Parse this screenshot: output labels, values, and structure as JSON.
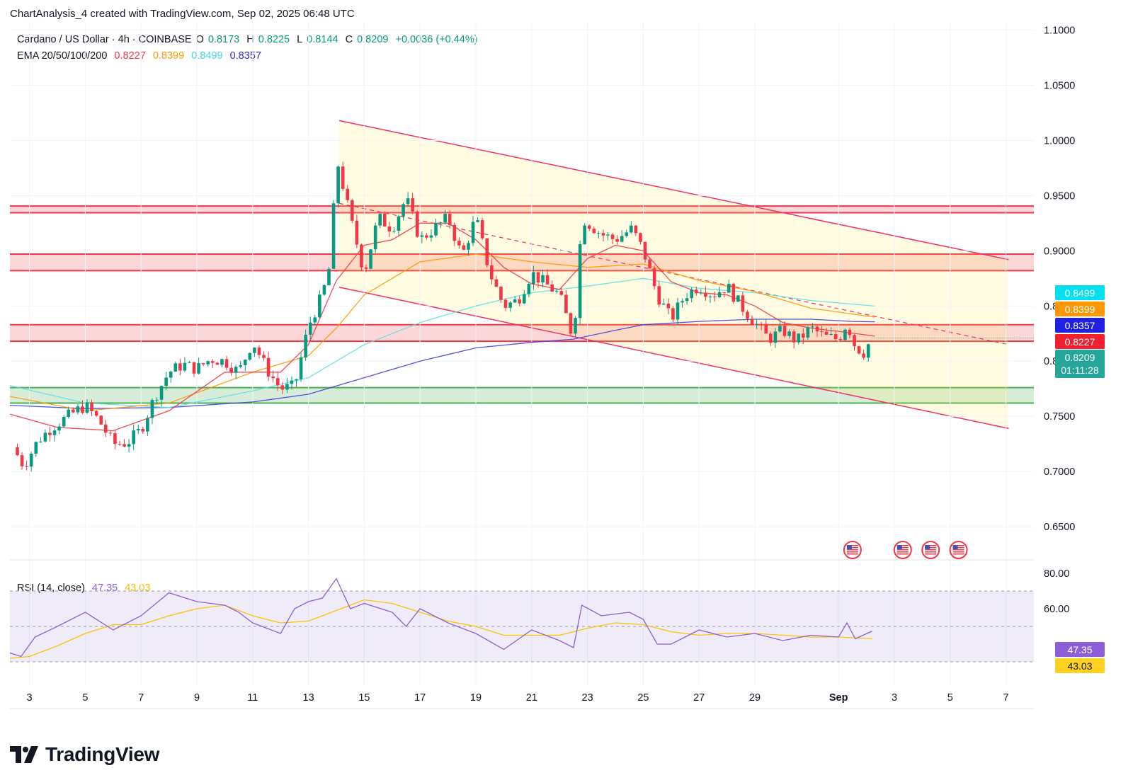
{
  "header": {
    "author_line": "ChartAnalysis_4 created with TradingView.com, Sep 02, 2025 06:48 UTC"
  },
  "legend": {
    "symbol": "Cardano / US Dollar · 4h · COINBASE",
    "open_label": "O",
    "open": "0.8173",
    "high_label": "H",
    "high": "0.8225",
    "low_label": "L",
    "low": "0.8144",
    "close_label": "C",
    "close": "0.8209",
    "change": "+0.0036 (+0.44%)",
    "ema_label": "EMA 20/50/100/200",
    "ema20": "0.8227",
    "ema50": "0.8399",
    "ema100": "0.8499",
    "ema200": "0.8357",
    "rsi_label": "RSI (14, close)",
    "rsi": "47.35",
    "rsi_ma": "43.03"
  },
  "price_badges": {
    "ema100": "0.8499",
    "ema50": "0.8399",
    "ema200": "0.8357",
    "ema20": "0.8227",
    "close": "0.8209",
    "countdown": "01:11:28",
    "rsi": "47.35",
    "rsi_ma": "43.03"
  },
  "colors": {
    "up": "#089981",
    "down": "#f23645",
    "ema20": "#f23645",
    "ema50": "#ff9800",
    "ema100": "#5ee0e8",
    "ema200": "#3f3fe0",
    "rsi": "#8e5ed8",
    "rsi_ma": "#f7c600",
    "channel": "#f0306a",
    "resistance": "#f23645",
    "support": "#4caf50"
  },
  "brand": {
    "name": "TradingView",
    "logo_icon": "tradingview-logo-icon"
  },
  "chart_data": {
    "type": "candlestick",
    "title": "Cardano / US Dollar · 4h · COINBASE",
    "x_ticks": [
      "3",
      "5",
      "7",
      "9",
      "11",
      "13",
      "15",
      "17",
      "19",
      "21",
      "23",
      "25",
      "27",
      "29",
      "Sep",
      "3",
      "5",
      "7"
    ],
    "x_tick_days": [
      3,
      5,
      7,
      9,
      11,
      13,
      15,
      17,
      19,
      21,
      23,
      25,
      27,
      29,
      32,
      34,
      36,
      38
    ],
    "y_ticks": [
      "1.1000",
      "1.0500",
      "1.0000",
      "0.9500",
      "0.9000",
      "0.8500",
      "0.8000",
      "0.7500",
      "0.7000",
      "0.6500"
    ],
    "ylim": [
      0.627,
      1.108
    ],
    "rsi_ticks": [
      "80.00",
      "60.00"
    ],
    "rsi_ylim": [
      16,
      84
    ],
    "rsi_bands": [
      70,
      50,
      30
    ],
    "x_start": "2025-08-02",
    "x_range_days": [
      2.3,
      39.0
    ],
    "close_keypoints": [
      [
        2.4,
        0.722
      ],
      [
        2.8,
        0.705
      ],
      [
        3.3,
        0.728
      ],
      [
        3.8,
        0.74
      ],
      [
        4.5,
        0.752
      ],
      [
        5.0,
        0.76
      ],
      [
        5.5,
        0.746
      ],
      [
        6.0,
        0.725
      ],
      [
        6.5,
        0.726
      ],
      [
        7.0,
        0.738
      ],
      [
        7.5,
        0.768
      ],
      [
        8.0,
        0.79
      ],
      [
        8.5,
        0.797
      ],
      [
        9.0,
        0.793
      ],
      [
        9.5,
        0.802
      ],
      [
        10.0,
        0.8
      ],
      [
        10.5,
        0.79
      ],
      [
        11.0,
        0.818
      ],
      [
        11.5,
        0.793
      ],
      [
        12.0,
        0.775
      ],
      [
        12.5,
        0.777
      ],
      [
        13.0,
        0.832
      ],
      [
        13.5,
        0.86
      ],
      [
        13.8,
        0.89
      ],
      [
        14.0,
        0.985
      ],
      [
        14.5,
        0.93
      ],
      [
        15.0,
        0.88
      ],
      [
        15.5,
        0.93
      ],
      [
        16.0,
        0.92
      ],
      [
        16.5,
        0.948
      ],
      [
        17.0,
        0.91
      ],
      [
        17.5,
        0.92
      ],
      [
        18.0,
        0.93
      ],
      [
        18.5,
        0.895
      ],
      [
        19.0,
        0.93
      ],
      [
        19.5,
        0.88
      ],
      [
        20.0,
        0.85
      ],
      [
        20.5,
        0.855
      ],
      [
        21.0,
        0.88
      ],
      [
        21.5,
        0.87
      ],
      [
        22.0,
        0.86
      ],
      [
        22.5,
        0.82
      ],
      [
        22.8,
        0.93
      ],
      [
        23.5,
        0.915
      ],
      [
        24.0,
        0.91
      ],
      [
        24.6,
        0.92
      ],
      [
        25.0,
        0.9
      ],
      [
        25.5,
        0.86
      ],
      [
        26.0,
        0.838
      ],
      [
        26.5,
        0.86
      ],
      [
        27.0,
        0.868
      ],
      [
        27.5,
        0.86
      ],
      [
        28.0,
        0.868
      ],
      [
        28.5,
        0.85
      ],
      [
        29.0,
        0.835
      ],
      [
        29.5,
        0.82
      ],
      [
        30.0,
        0.828
      ],
      [
        30.5,
        0.818
      ],
      [
        31.0,
        0.83
      ],
      [
        31.5,
        0.822
      ],
      [
        32.0,
        0.82
      ],
      [
        32.3,
        0.835
      ],
      [
        32.6,
        0.813
      ],
      [
        32.9,
        0.808
      ],
      [
        33.2,
        0.821
      ]
    ],
    "ema20_points": [
      [
        2.3,
        0.752
      ],
      [
        4,
        0.74
      ],
      [
        6,
        0.737
      ],
      [
        8,
        0.755
      ],
      [
        10,
        0.79
      ],
      [
        12,
        0.79
      ],
      [
        13,
        0.815
      ],
      [
        14,
        0.873
      ],
      [
        15,
        0.905
      ],
      [
        16,
        0.91
      ],
      [
        17,
        0.925
      ],
      [
        18,
        0.925
      ],
      [
        19,
        0.91
      ],
      [
        20,
        0.885
      ],
      [
        21,
        0.87
      ],
      [
        22,
        0.865
      ],
      [
        23,
        0.893
      ],
      [
        24,
        0.905
      ],
      [
        25,
        0.9
      ],
      [
        26,
        0.872
      ],
      [
        27,
        0.862
      ],
      [
        28,
        0.86
      ],
      [
        29,
        0.85
      ],
      [
        30,
        0.835
      ],
      [
        31,
        0.83
      ],
      [
        32,
        0.827
      ],
      [
        33.3,
        0.8227
      ]
    ],
    "ema50_points": [
      [
        2.3,
        0.768
      ],
      [
        5,
        0.755
      ],
      [
        8,
        0.762
      ],
      [
        11,
        0.79
      ],
      [
        13,
        0.805
      ],
      [
        14,
        0.83
      ],
      [
        15,
        0.86
      ],
      [
        17,
        0.89
      ],
      [
        19,
        0.897
      ],
      [
        21,
        0.89
      ],
      [
        23,
        0.885
      ],
      [
        25,
        0.888
      ],
      [
        27,
        0.873
      ],
      [
        29,
        0.863
      ],
      [
        31,
        0.848
      ],
      [
        33.3,
        0.8399
      ]
    ],
    "ema100_points": [
      [
        2.3,
        0.778
      ],
      [
        5,
        0.762
      ],
      [
        8,
        0.758
      ],
      [
        11,
        0.773
      ],
      [
        13,
        0.785
      ],
      [
        15,
        0.815
      ],
      [
        17,
        0.835
      ],
      [
        19,
        0.85
      ],
      [
        21,
        0.862
      ],
      [
        23,
        0.868
      ],
      [
        25,
        0.875
      ],
      [
        27,
        0.866
      ],
      [
        29,
        0.862
      ],
      [
        31,
        0.855
      ],
      [
        33.3,
        0.8499
      ]
    ],
    "ema200_points": [
      [
        2.3,
        0.76
      ],
      [
        5,
        0.757
      ],
      [
        8,
        0.758
      ],
      [
        11,
        0.763
      ],
      [
        13,
        0.77
      ],
      [
        15,
        0.785
      ],
      [
        17,
        0.8
      ],
      [
        19,
        0.812
      ],
      [
        21,
        0.817
      ],
      [
        22.5,
        0.82
      ],
      [
        24,
        0.828
      ],
      [
        25,
        0.833
      ],
      [
        27,
        0.836
      ],
      [
        29,
        0.838
      ],
      [
        31,
        0.838
      ],
      [
        32.5,
        0.836
      ],
      [
        33.3,
        0.8357
      ]
    ],
    "rsi_points": [
      [
        2.3,
        35
      ],
      [
        2.7,
        33
      ],
      [
        3.2,
        44
      ],
      [
        4,
        50
      ],
      [
        5,
        58
      ],
      [
        6,
        48
      ],
      [
        7,
        56
      ],
      [
        8,
        69
      ],
      [
        9,
        64
      ],
      [
        10,
        62
      ],
      [
        10.5,
        58
      ],
      [
        11,
        52
      ],
      [
        12,
        46
      ],
      [
        12.5,
        60
      ],
      [
        13,
        64
      ],
      [
        13.5,
        66
      ],
      [
        14,
        77
      ],
      [
        14.5,
        60
      ],
      [
        15,
        63
      ],
      [
        16,
        58
      ],
      [
        16.5,
        50
      ],
      [
        17,
        60
      ],
      [
        18,
        52
      ],
      [
        19,
        46
      ],
      [
        20,
        37
      ],
      [
        21,
        48
      ],
      [
        22,
        42
      ],
      [
        22.5,
        38
      ],
      [
        22.8,
        62
      ],
      [
        23.5,
        56
      ],
      [
        24.5,
        58
      ],
      [
        25,
        54
      ],
      [
        25.5,
        40
      ],
      [
        26,
        40
      ],
      [
        27,
        48
      ],
      [
        28,
        44
      ],
      [
        29,
        46
      ],
      [
        30,
        42
      ],
      [
        31,
        45
      ],
      [
        32,
        44
      ],
      [
        32.3,
        52
      ],
      [
        32.6,
        43
      ],
      [
        33.2,
        47.35
      ]
    ],
    "rsi_ma_points": [
      [
        2.3,
        32
      ],
      [
        3,
        33
      ],
      [
        4,
        39
      ],
      [
        5,
        46
      ],
      [
        6,
        51
      ],
      [
        7,
        51
      ],
      [
        8,
        56
      ],
      [
        9,
        60
      ],
      [
        10,
        62
      ],
      [
        11,
        56
      ],
      [
        12,
        52
      ],
      [
        13,
        53
      ],
      [
        14,
        59
      ],
      [
        15,
        65
      ],
      [
        16,
        63
      ],
      [
        17,
        58
      ],
      [
        18,
        53
      ],
      [
        19,
        50
      ],
      [
        20,
        45
      ],
      [
        21,
        45
      ],
      [
        22,
        45
      ],
      [
        23,
        49
      ],
      [
        24,
        52
      ],
      [
        25,
        51
      ],
      [
        26,
        47
      ],
      [
        27,
        45
      ],
      [
        28,
        46
      ],
      [
        29,
        46
      ],
      [
        30,
        45
      ],
      [
        31,
        44
      ],
      [
        32,
        44
      ],
      [
        33.2,
        43.03
      ]
    ],
    "channel": {
      "upper": [
        [
          14.1,
          1.018
        ],
        [
          38.1,
          0.892
        ]
      ],
      "lower": [
        [
          14.1,
          0.867
        ],
        [
          38.1,
          0.739
        ]
      ],
      "midline_dashed": [
        [
          14.1,
          0.943
        ],
        [
          38.1,
          0.815
        ]
      ]
    },
    "resistance_zones": [
      [
        0.9345,
        0.9405
      ],
      [
        0.882,
        0.897
      ],
      [
        0.818,
        0.833
      ]
    ],
    "support_zone": [
      0.762,
      0.776
    ],
    "events_icon": "us-flag-icon",
    "events_days": [
      32.5,
      34.3,
      35.3,
      36.3
    ]
  }
}
